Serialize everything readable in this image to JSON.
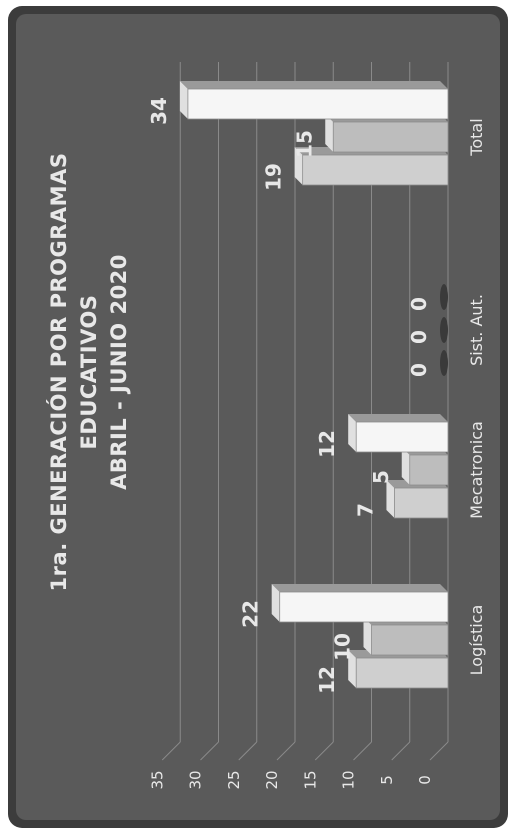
{
  "chart_data": {
    "type": "bar",
    "title_lines": [
      "1ra. GENERACIÓN POR PROGRAMAS",
      "EDUCATIVOS",
      "ABRIL - JUNIO 2020"
    ],
    "categories": [
      "Logística",
      "Mecatronica",
      "Sist. Aut.",
      "Total"
    ],
    "series": [
      {
        "values": [
          12,
          7,
          0,
          19
        ]
      },
      {
        "values": [
          10,
          5,
          0,
          15
        ]
      },
      {
        "values": [
          22,
          12,
          0,
          34
        ]
      }
    ],
    "y_ticks": [
      0,
      5,
      10,
      15,
      20,
      25,
      30,
      35
    ],
    "ylim": [
      0,
      35
    ],
    "grid": true,
    "legend": "none",
    "orientation": "rotated-90",
    "colors": {
      "background": "#5a5a5a",
      "frame": "#3c3c3c",
      "gridline": "#8a8a8a",
      "text": "#e8e8e8",
      "series": [
        "#cfcfcf",
        "#bdbdbd",
        "#f6f6f6"
      ]
    }
  }
}
